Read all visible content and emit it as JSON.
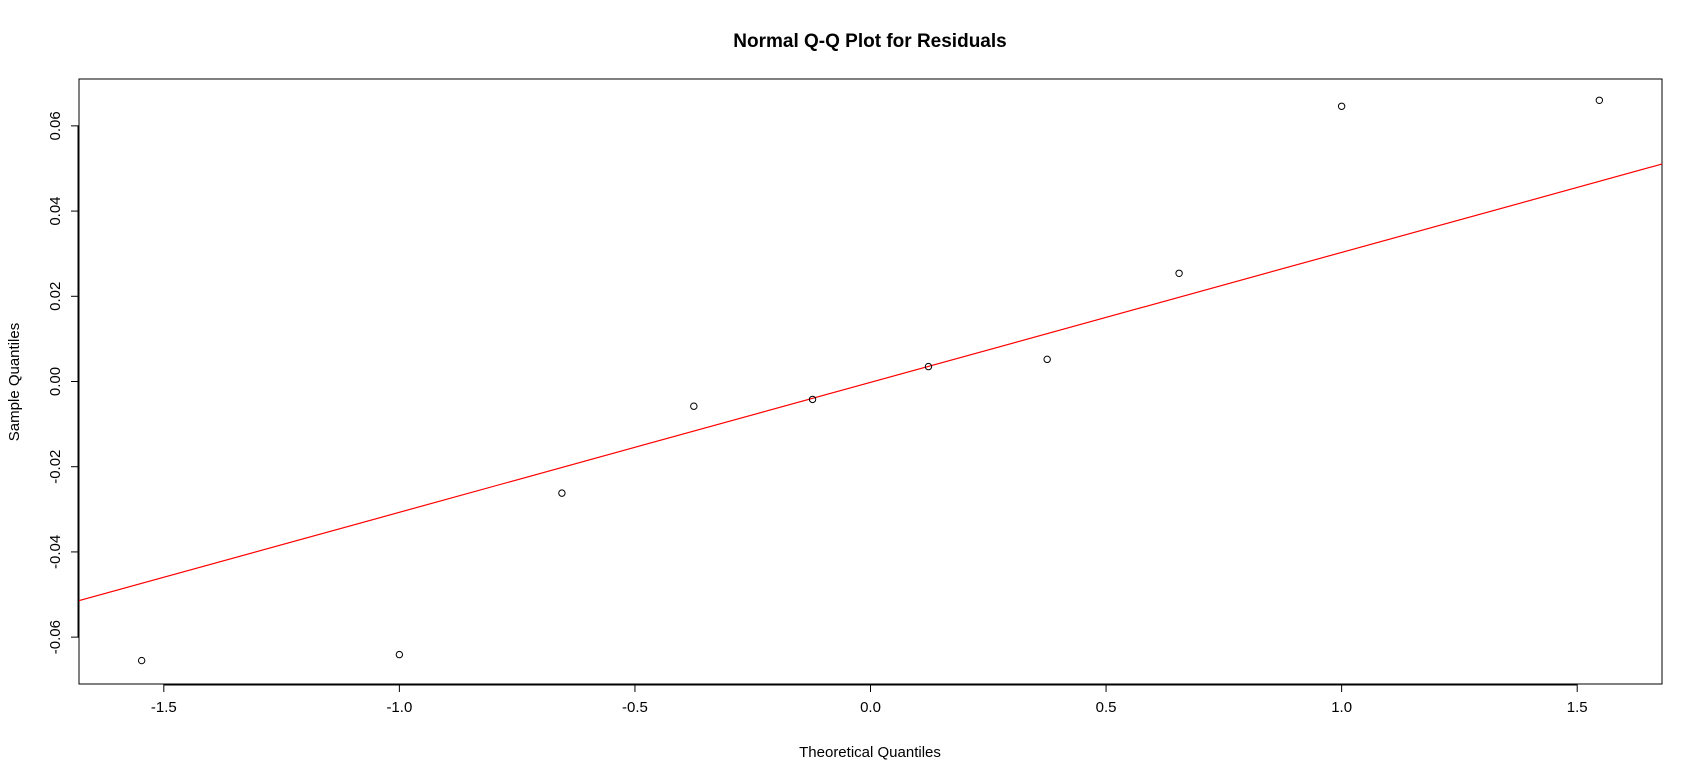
{
  "chart_data": {
    "type": "scatter",
    "title": "Normal Q-Q Plot for Residuals",
    "xlabel": "Theoretical Quantiles",
    "ylabel": "Sample Quantiles",
    "xlim": [
      -1.68,
      1.68
    ],
    "ylim": [
      -0.071,
      0.071
    ],
    "x_ticks": [
      -1.5,
      -1.0,
      -0.5,
      0.0,
      0.5,
      1.0,
      1.5
    ],
    "x_tick_labels": [
      "-1.5",
      "-1.0",
      "-0.5",
      "0.0",
      "0.5",
      "1.0",
      "1.5"
    ],
    "y_ticks": [
      -0.06,
      -0.04,
      -0.02,
      0.0,
      0.02,
      0.04,
      0.06
    ],
    "y_tick_labels": [
      "-0.06",
      "-0.04",
      "-0.02",
      "0.00",
      "0.02",
      "0.04",
      "0.06"
    ],
    "points": [
      {
        "x": -1.547,
        "y": -0.0655
      },
      {
        "x": -1.0,
        "y": -0.0641
      },
      {
        "x": -0.655,
        "y": -0.0262
      },
      {
        "x": -0.375,
        "y": -0.0058
      },
      {
        "x": -0.123,
        "y": -0.0042
      },
      {
        "x": 0.123,
        "y": 0.0035
      },
      {
        "x": 0.375,
        "y": 0.0052
      },
      {
        "x": 0.655,
        "y": 0.0254
      },
      {
        "x": 1.0,
        "y": 0.0646
      },
      {
        "x": 1.547,
        "y": 0.066
      }
    ],
    "reference_line": {
      "intercept": -0.0002,
      "slope": 0.0305,
      "color": "#ff0000"
    },
    "point_color": "#000000",
    "grid": false
  }
}
